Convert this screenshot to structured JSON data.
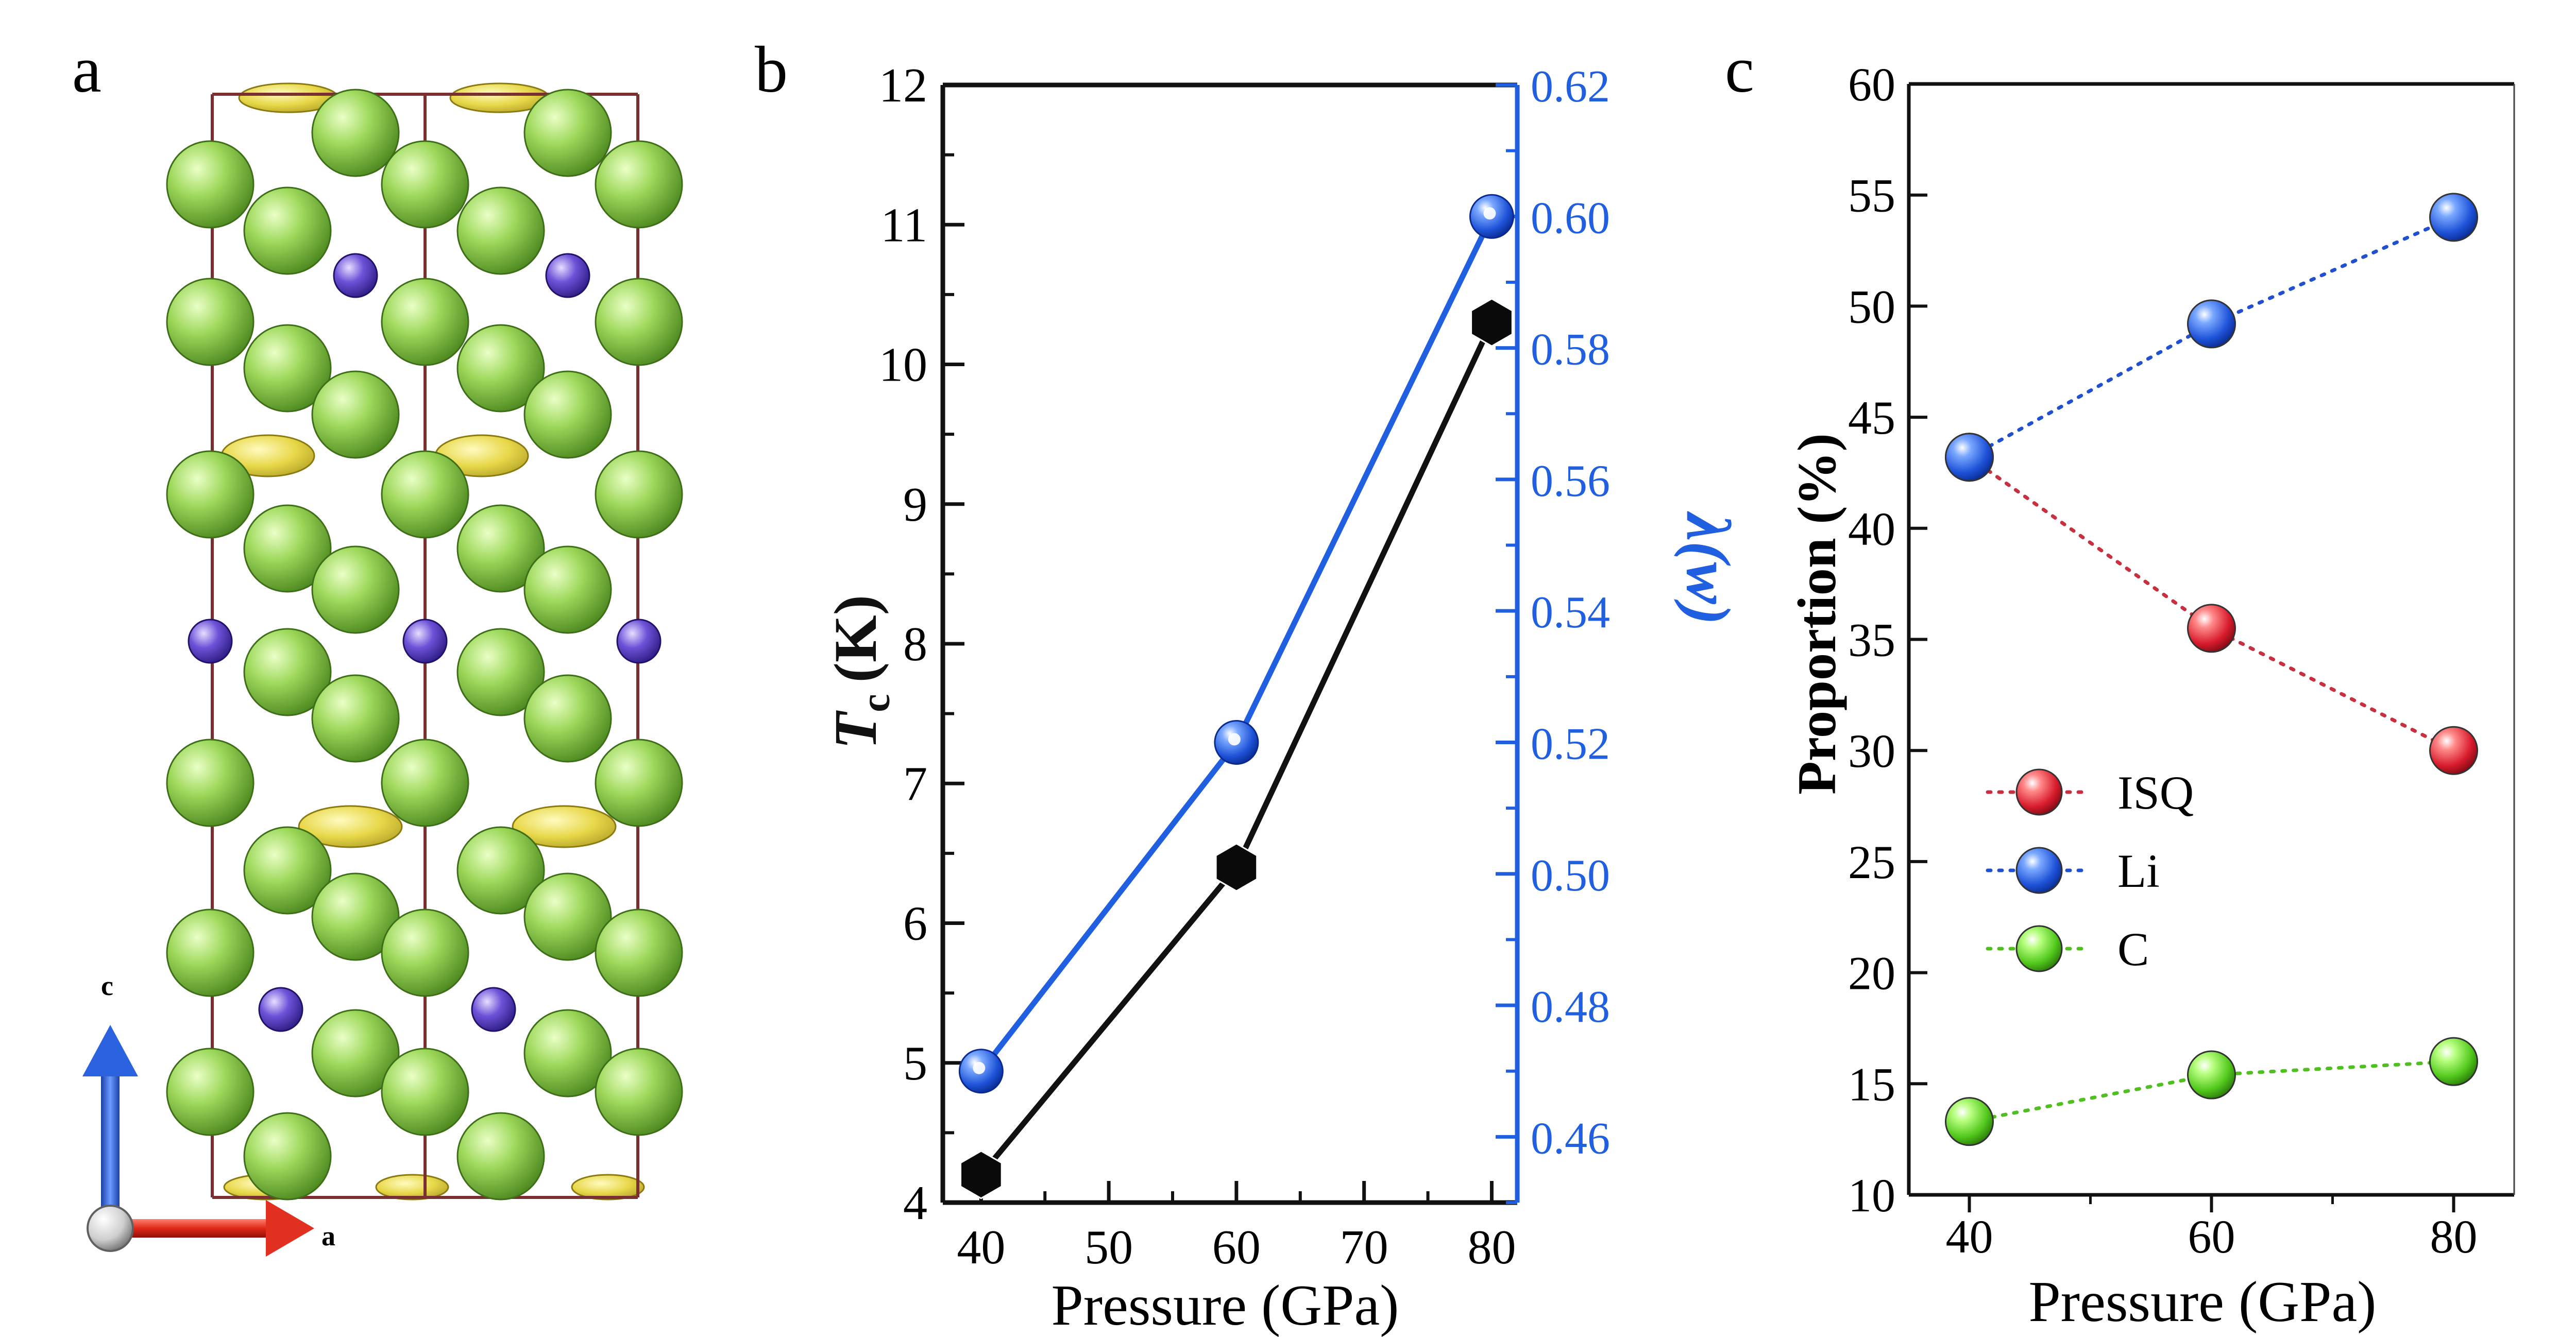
{
  "panels": {
    "a": {
      "label": "a",
      "axis_labels": {
        "c": "c",
        "a": "a"
      },
      "colors": {
        "carbon": "#86c940",
        "lithium": "#6a4fd0",
        "electron": "#e4d440",
        "cell": "#7a3030",
        "axis_c": "#2a62e0",
        "axis_a": "#e23020",
        "origin": "#d8d8d8"
      }
    },
    "b": {
      "label": "b"
    },
    "c": {
      "label": "c"
    }
  },
  "chart_data": [
    {
      "panel": "b",
      "type": "line",
      "x": [
        40,
        60,
        80
      ],
      "xlabel": "Pressure (GPa)",
      "xlim": [
        37,
        82
      ],
      "xticks": [
        40,
        50,
        60,
        70,
        80
      ],
      "ylabel_left": {
        "main": "T",
        "sub": "c",
        "unit": "(K)"
      },
      "ylim_left": [
        4,
        12
      ],
      "yticks_left": [
        4,
        5,
        6,
        7,
        8,
        9,
        10,
        11,
        12
      ],
      "ylabel_right": "λ(w)",
      "ylim_right": [
        0.45,
        0.62
      ],
      "yticks_right": [
        "0.46",
        "0.48",
        "0.50",
        "0.52",
        "0.54",
        "0.56",
        "0.58",
        "0.60",
        "0.62"
      ],
      "series": [
        {
          "axis": "left",
          "marker": "hexagon",
          "color": "#111111",
          "values": [
            4.2,
            6.4,
            10.3
          ]
        },
        {
          "axis": "right",
          "marker": "sphere",
          "color": "#2060e0",
          "values": [
            0.47,
            0.52,
            0.6
          ]
        }
      ]
    },
    {
      "panel": "c",
      "type": "scatter",
      "x": [
        40,
        60,
        80
      ],
      "xlabel": "Pressure (GPa)",
      "xlim": [
        35,
        85
      ],
      "xticks": [
        40,
        60,
        80
      ],
      "ylabel": "Proportion (%)",
      "ylim": [
        10,
        60
      ],
      "yticks": [
        10,
        15,
        20,
        25,
        30,
        35,
        40,
        45,
        50,
        55,
        60
      ],
      "legend": "center-left",
      "series": [
        {
          "name": "ISQ",
          "color": "#e02030",
          "values": [
            43.2,
            35.5,
            30.0
          ]
        },
        {
          "name": "Li",
          "color": "#2050e0",
          "values": [
            43.2,
            49.2,
            54.0
          ]
        },
        {
          "name": "C",
          "color": "#60d020",
          "values": [
            13.3,
            15.4,
            16.0
          ]
        }
      ]
    }
  ]
}
